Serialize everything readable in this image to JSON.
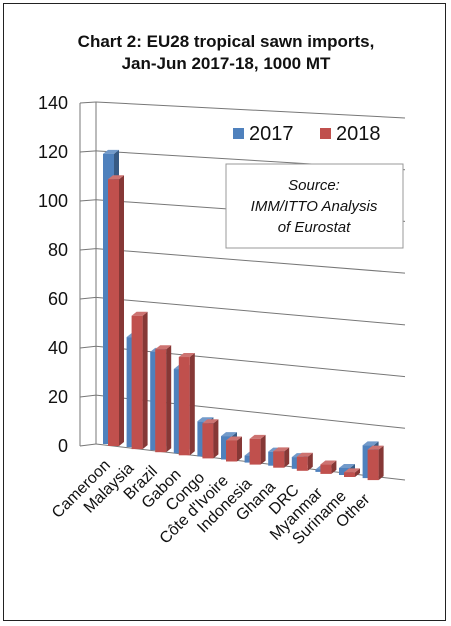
{
  "chart_data": {
    "type": "bar",
    "title_lines": [
      "Chart 2: EU28 tropical sawn imports,",
      "Jan-Jun 2017-18, 1000 MT"
    ],
    "categories": [
      "Cameroon",
      "Malaysia",
      "Brazil",
      "Gabon",
      "Congo",
      "Côte d'Ivoire",
      "Indonesia",
      "Ghana",
      "DRC",
      "Myanmar",
      "Suriname",
      "Other"
    ],
    "series": [
      {
        "name": "2017",
        "color": "#4f81bd",
        "values": [
          124,
          47,
          42,
          36,
          15,
          10,
          3,
          6,
          5,
          1,
          3,
          14
        ]
      },
      {
        "name": "2018",
        "color": "#c0504d",
        "values": [
          114,
          57,
          44,
          42,
          15,
          9,
          11,
          7,
          6,
          4,
          2,
          13
        ]
      }
    ],
    "yticks": [
      0,
      20,
      40,
      60,
      80,
      100,
      120,
      140
    ],
    "ylim": [
      0,
      140
    ],
    "legend_position": "top-right",
    "annotation": [
      "Source:",
      "IMM/ITTO Analysis",
      "of Eurostat"
    ],
    "grid": true
  }
}
